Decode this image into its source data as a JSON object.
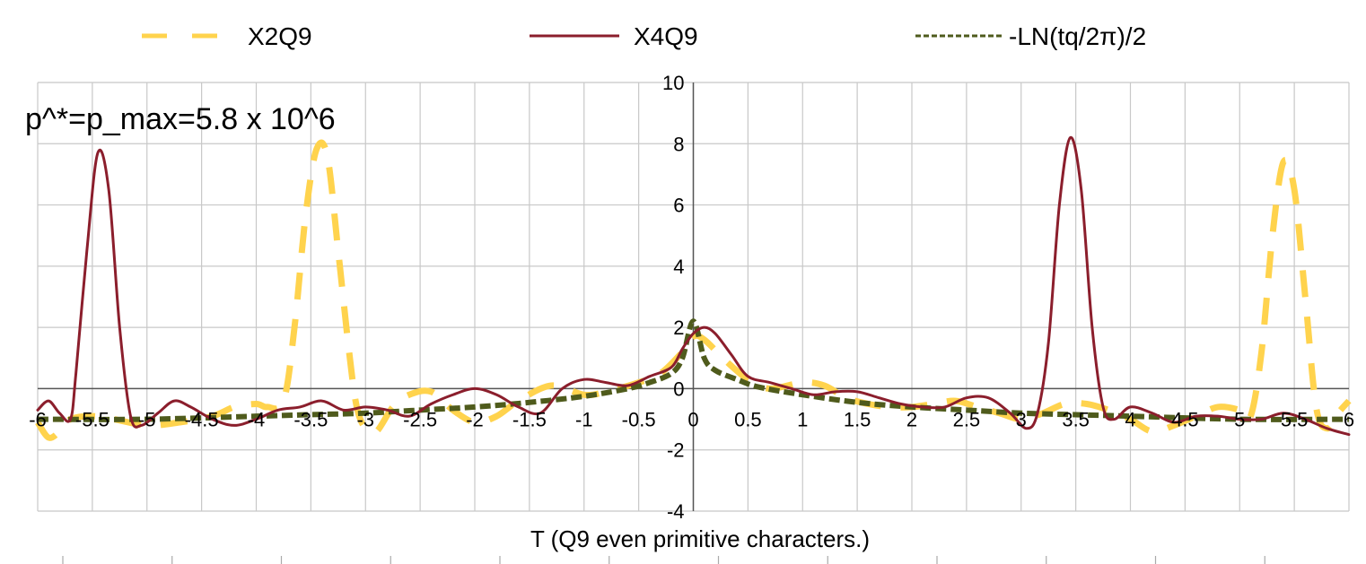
{
  "chart_data": {
    "type": "line",
    "title": "",
    "xlabel": "T (Q9  even primitive characters.)",
    "ylabel": "",
    "annotation": "p^*=p_max=5.8 x 10^6",
    "xlim": [
      -6,
      6
    ],
    "ylim": [
      -4,
      10
    ],
    "x_ticks": [
      -6,
      -5.5,
      -5,
      -4.5,
      -4,
      -3.5,
      -3,
      -2.5,
      -2,
      -1.5,
      -1,
      -0.5,
      0,
      0.5,
      1,
      1.5,
      2,
      2.5,
      3,
      3.5,
      4,
      4.5,
      5,
      5.5,
      6
    ],
    "y_ticks": [
      -4,
      -2,
      0,
      2,
      4,
      6,
      8,
      10
    ],
    "grid": true,
    "legend_position": "top",
    "series": [
      {
        "name": "X2Q9",
        "color": "#FFD34D",
        "style": "dashed",
        "points": [
          [
            -6.0,
            -1.1
          ],
          [
            -5.9,
            -1.6
          ],
          [
            -5.8,
            -1.4
          ],
          [
            -5.7,
            -1.0
          ],
          [
            -5.5,
            -0.9
          ],
          [
            -5.3,
            -1.0
          ],
          [
            -5.0,
            -1.2
          ],
          [
            -4.7,
            -1.1
          ],
          [
            -4.4,
            -0.9
          ],
          [
            -4.2,
            -0.6
          ],
          [
            -4.0,
            -0.5
          ],
          [
            -3.9,
            -0.6
          ],
          [
            -3.75,
            -0.4
          ],
          [
            -3.65,
            2.0
          ],
          [
            -3.55,
            5.6
          ],
          [
            -3.45,
            7.8
          ],
          [
            -3.35,
            7.6
          ],
          [
            -3.25,
            4.5
          ],
          [
            -3.15,
            1.2
          ],
          [
            -3.08,
            -0.6
          ],
          [
            -3.0,
            -1.3
          ],
          [
            -2.9,
            -1.4
          ],
          [
            -2.75,
            -0.6
          ],
          [
            -2.6,
            -0.2
          ],
          [
            -2.4,
            -0.1
          ],
          [
            -2.2,
            -0.7
          ],
          [
            -2.0,
            -1.1
          ],
          [
            -1.8,
            -0.9
          ],
          [
            -1.6,
            -0.4
          ],
          [
            -1.3,
            0.1
          ],
          [
            -1.0,
            -0.2
          ],
          [
            -0.8,
            -0.1
          ],
          [
            -0.5,
            0.2
          ],
          [
            -0.3,
            0.5
          ],
          [
            -0.1,
            1.2
          ],
          [
            0.0,
            1.7
          ],
          [
            0.1,
            1.6
          ],
          [
            0.3,
            0.9
          ],
          [
            0.5,
            0.3
          ],
          [
            0.7,
            0.0
          ],
          [
            1.0,
            0.2
          ],
          [
            1.2,
            0.1
          ],
          [
            1.4,
            -0.3
          ],
          [
            1.6,
            -0.5
          ],
          [
            1.8,
            -0.6
          ],
          [
            2.0,
            -0.6
          ],
          [
            2.2,
            -0.5
          ],
          [
            2.4,
            -0.4
          ],
          [
            2.6,
            -0.6
          ],
          [
            2.8,
            -0.8
          ],
          [
            3.0,
            -1.0
          ],
          [
            3.2,
            -0.8
          ],
          [
            3.4,
            -0.5
          ],
          [
            3.6,
            -0.5
          ],
          [
            3.8,
            -0.7
          ],
          [
            4.0,
            -1.0
          ],
          [
            4.2,
            -1.4
          ],
          [
            4.4,
            -1.2
          ],
          [
            4.6,
            -0.9
          ],
          [
            4.8,
            -0.6
          ],
          [
            5.0,
            -0.7
          ],
          [
            5.1,
            -0.9
          ],
          [
            5.2,
            1.2
          ],
          [
            5.3,
            5.0
          ],
          [
            5.4,
            7.4
          ],
          [
            5.5,
            6.5
          ],
          [
            5.6,
            3.0
          ],
          [
            5.7,
            -0.6
          ],
          [
            5.8,
            -1.3
          ],
          [
            5.9,
            -0.8
          ],
          [
            6.0,
            -0.4
          ]
        ]
      },
      {
        "name": "X4Q9",
        "color": "#8B1E2C",
        "style": "solid",
        "points": [
          [
            -6.0,
            -0.7
          ],
          [
            -5.9,
            -0.4
          ],
          [
            -5.8,
            -0.8
          ],
          [
            -5.7,
            -1.0
          ],
          [
            -5.65,
            0.5
          ],
          [
            -5.55,
            4.5
          ],
          [
            -5.45,
            7.7
          ],
          [
            -5.35,
            6.5
          ],
          [
            -5.25,
            2.0
          ],
          [
            -5.15,
            -0.9
          ],
          [
            -5.05,
            -1.2
          ],
          [
            -4.9,
            -0.8
          ],
          [
            -4.75,
            -0.4
          ],
          [
            -4.6,
            -0.6
          ],
          [
            -4.4,
            -1.0
          ],
          [
            -4.2,
            -1.2
          ],
          [
            -4.0,
            -1.0
          ],
          [
            -3.8,
            -0.7
          ],
          [
            -3.6,
            -0.6
          ],
          [
            -3.4,
            -0.4
          ],
          [
            -3.2,
            -0.7
          ],
          [
            -3.0,
            -0.6
          ],
          [
            -2.8,
            -0.7
          ],
          [
            -2.6,
            -0.9
          ],
          [
            -2.4,
            -0.5
          ],
          [
            -2.2,
            -0.2
          ],
          [
            -2.0,
            0.0
          ],
          [
            -1.8,
            -0.2
          ],
          [
            -1.6,
            -0.6
          ],
          [
            -1.4,
            -0.8
          ],
          [
            -1.2,
            0.0
          ],
          [
            -1.0,
            0.3
          ],
          [
            -0.8,
            0.2
          ],
          [
            -0.6,
            0.1
          ],
          [
            -0.4,
            0.4
          ],
          [
            -0.2,
            0.7
          ],
          [
            -0.1,
            1.3
          ],
          [
            0.0,
            1.8
          ],
          [
            0.1,
            2.0
          ],
          [
            0.2,
            1.8
          ],
          [
            0.35,
            1.1
          ],
          [
            0.5,
            0.4
          ],
          [
            0.7,
            0.2
          ],
          [
            0.9,
            0.0
          ],
          [
            1.1,
            -0.2
          ],
          [
            1.3,
            -0.1
          ],
          [
            1.5,
            -0.1
          ],
          [
            1.7,
            -0.3
          ],
          [
            1.9,
            -0.5
          ],
          [
            2.1,
            -0.6
          ],
          [
            2.3,
            -0.6
          ],
          [
            2.5,
            -0.3
          ],
          [
            2.7,
            -0.3
          ],
          [
            2.9,
            -0.8
          ],
          [
            3.05,
            -1.3
          ],
          [
            3.15,
            -0.8
          ],
          [
            3.25,
            1.5
          ],
          [
            3.35,
            6.0
          ],
          [
            3.45,
            8.2
          ],
          [
            3.55,
            6.5
          ],
          [
            3.65,
            2.0
          ],
          [
            3.75,
            -0.6
          ],
          [
            3.85,
            -1.0
          ],
          [
            4.0,
            -0.6
          ],
          [
            4.2,
            -0.8
          ],
          [
            4.4,
            -1.1
          ],
          [
            4.6,
            -0.9
          ],
          [
            4.8,
            -0.9
          ],
          [
            5.0,
            -1.0
          ],
          [
            5.2,
            -1.0
          ],
          [
            5.4,
            -0.8
          ],
          [
            5.6,
            -1.0
          ],
          [
            5.8,
            -1.3
          ],
          [
            6.0,
            -1.5
          ]
        ]
      },
      {
        "name": "-LN(tq/2π)/2",
        "color": "#4F5B1C",
        "style": "dotted",
        "points": [
          [
            -6.0,
            -1.0
          ],
          [
            -5.0,
            -1.0
          ],
          [
            -4.0,
            -0.9
          ],
          [
            -3.5,
            -0.85
          ],
          [
            -3.0,
            -0.8
          ],
          [
            -2.5,
            -0.7
          ],
          [
            -2.0,
            -0.6
          ],
          [
            -1.5,
            -0.45
          ],
          [
            -1.0,
            -0.25
          ],
          [
            -0.6,
            0.0
          ],
          [
            -0.4,
            0.2
          ],
          [
            -0.2,
            0.5
          ],
          [
            -0.1,
            1.0
          ],
          [
            0.0,
            2.2
          ],
          [
            0.1,
            1.0
          ],
          [
            0.2,
            0.6
          ],
          [
            0.4,
            0.3
          ],
          [
            0.6,
            0.05
          ],
          [
            1.0,
            -0.2
          ],
          [
            1.5,
            -0.45
          ],
          [
            2.0,
            -0.6
          ],
          [
            2.5,
            -0.7
          ],
          [
            3.0,
            -0.8
          ],
          [
            3.5,
            -0.85
          ],
          [
            4.0,
            -0.9
          ],
          [
            5.0,
            -1.0
          ],
          [
            6.0,
            -1.0
          ]
        ]
      }
    ]
  }
}
